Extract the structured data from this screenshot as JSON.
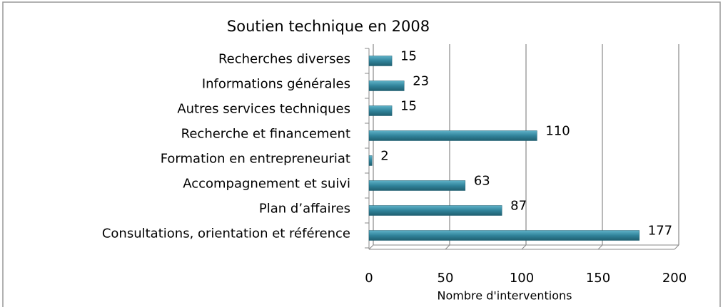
{
  "chart_data": {
    "type": "bar",
    "orientation": "horizontal",
    "title": "Soutien technique en 2008",
    "categories": [
      "Recherches diverses",
      "Informations générales",
      "Autres services techniques",
      "Recherche et financement",
      "Formation en entrepreneuriat",
      "Accompagnement et suivi",
      "Plan d’affaires",
      "Consultations, orientation et référence"
    ],
    "values": [
      15,
      23,
      15,
      110,
      2,
      63,
      87,
      177
    ],
    "color": "#31849b",
    "xlabel": "Nombre d'interventions",
    "xlim": [
      0,
      200
    ],
    "xticks": [
      0,
      50,
      100,
      150,
      200
    ],
    "grid": true
  }
}
